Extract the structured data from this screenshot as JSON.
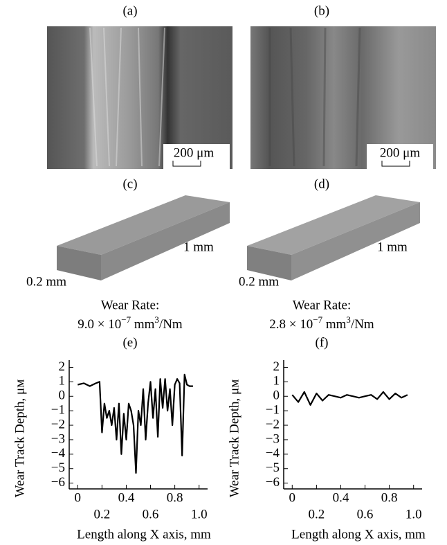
{
  "panels": [
    {
      "label": "(a)",
      "scale_bar": "200 μm"
    },
    {
      "label": "(b)",
      "scale_bar": "200 μm"
    },
    {
      "label": "(c)",
      "length": "1 mm",
      "width": "0.2 mm",
      "rate_title": "Wear Rate:",
      "rate": {
        "mantissa": "9.0 × 10",
        "exponent": "−7",
        "unit": " mm",
        "unit_exp": "3",
        "tail": "/Nm"
      }
    },
    {
      "label": "(d)",
      "length": "1 mm",
      "width": "0.2 mm",
      "rate_title": "Wear Rate:",
      "rate": {
        "mantissa": "2.8 × 10",
        "exponent": "−7",
        "unit": " mm",
        "unit_exp": "3",
        "tail": "/Nm"
      }
    }
  ],
  "chart_data": [
    {
      "type": "line",
      "title": "(e)",
      "xlabel": "Length along X axis, mm",
      "ylabel": "Wear Track Depth, μм",
      "color": "#000000",
      "xlim": [
        -0.07,
        1.07
      ],
      "ylim": [
        -6.4,
        2.5
      ],
      "xticks": [
        0,
        0.2,
        0.4,
        0.6,
        0.8,
        {
          "value": 1,
          "label": "1.0"
        }
      ],
      "yticks": [
        {
          "value": -6,
          "label": "−6"
        },
        {
          "value": -5,
          "label": "−5"
        },
        {
          "value": -4,
          "label": "−4"
        },
        {
          "value": -3,
          "label": "−3"
        },
        {
          "value": -2,
          "label": "−2"
        },
        {
          "value": -1,
          "label": "−1"
        },
        0,
        1,
        2
      ],
      "x": [
        0,
        0.05,
        0.1,
        0.15,
        0.18,
        0.2,
        0.22,
        0.24,
        0.26,
        0.28,
        0.3,
        0.32,
        0.34,
        0.36,
        0.38,
        0.4,
        0.42,
        0.44,
        0.46,
        0.48,
        0.5,
        0.52,
        0.54,
        0.56,
        0.58,
        0.6,
        0.62,
        0.64,
        0.66,
        0.68,
        0.7,
        0.72,
        0.74,
        0.76,
        0.78,
        0.8,
        0.82,
        0.84,
        0.86,
        0.88,
        0.9,
        0.92,
        0.95
      ],
      "values": [
        0.8,
        0.9,
        0.7,
        0.9,
        1.0,
        -2.5,
        -0.5,
        -1.5,
        -1,
        -2,
        -0.8,
        -3,
        -0.5,
        -4,
        -1.2,
        -3,
        -0.5,
        -1,
        -2,
        -5.3,
        -1,
        -2,
        0.5,
        -3,
        -0.5,
        1,
        -1.5,
        0.5,
        -2.8,
        1.2,
        -0.8,
        1.2,
        -1,
        0.5,
        -2,
        0.8,
        1.2,
        0.9,
        -4.1,
        1.5,
        0.8,
        0.7,
        0.7
      ]
    },
    {
      "type": "line",
      "title": "(f)",
      "xlabel": "Length along X axis, mm",
      "ylabel": "Wear Track Depth, μм",
      "color": "#000000",
      "xlim": [
        -0.07,
        1.07
      ],
      "ylim": [
        -6.4,
        2.5
      ],
      "xticks": [
        0,
        0.2,
        0.4,
        0.6,
        0.8,
        {
          "value": 1,
          "label": "1.0"
        }
      ],
      "yticks": [
        {
          "value": -6,
          "label": "−6"
        },
        {
          "value": -5,
          "label": "−5"
        },
        {
          "value": -4,
          "label": "−4"
        },
        {
          "value": -3,
          "label": "−3"
        },
        {
          "value": -2,
          "label": "−2"
        },
        {
          "value": -1,
          "label": "−1"
        },
        0,
        1,
        2
      ],
      "x": [
        0,
        0.05,
        0.1,
        0.15,
        0.2,
        0.25,
        0.3,
        0.35,
        0.4,
        0.45,
        0.5,
        0.55,
        0.6,
        0.65,
        0.7,
        0.75,
        0.8,
        0.85,
        0.9,
        0.95
      ],
      "values": [
        0.1,
        -0.4,
        0.3,
        -0.6,
        0.2,
        -0.3,
        0.1,
        0,
        -0.1,
        0.1,
        0,
        -0.1,
        0,
        0.1,
        -0.2,
        0.3,
        -0.2,
        0.2,
        -0.1,
        0.1
      ]
    }
  ]
}
